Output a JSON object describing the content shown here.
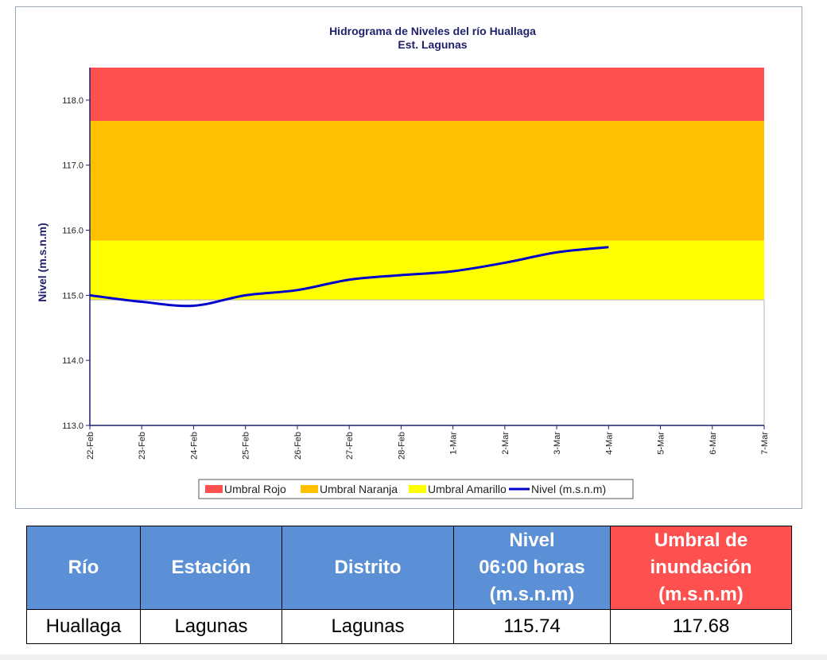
{
  "chart_data": {
    "type": "line",
    "title": "Hidrograma de Niveles del río Huallaga",
    "subtitle": "Est. Lagunas",
    "ylabel": "Nivel (m.s.n.m)",
    "xlabel": "",
    "ylim": [
      113.0,
      118.5
    ],
    "yticks": [
      "113.0",
      "114.0",
      "115.0",
      "116.0",
      "117.0",
      "118.0"
    ],
    "categories": [
      "22-Feb",
      "23-Feb",
      "24-Feb",
      "25-Feb",
      "26-Feb",
      "27-Feb",
      "28-Feb",
      "1-Mar",
      "2-Mar",
      "3-Mar",
      "4-Mar",
      "5-Mar",
      "6-Mar",
      "7-Mar"
    ],
    "bands": [
      {
        "name": "Umbral Rojo",
        "from": 117.68,
        "to": 118.5,
        "color": "#ff5050"
      },
      {
        "name": "Umbral Naranja",
        "from": 115.84,
        "to": 117.68,
        "color": "#ffc000"
      },
      {
        "name": "Umbral Amarillo",
        "from": 114.93,
        "to": 115.84,
        "color": "#ffff00"
      }
    ],
    "series": [
      {
        "name": "Nivel (m.s.n.m)",
        "color": "#0000cc",
        "x": [
          "22-Feb",
          "23-Feb",
          "24-Feb",
          "25-Feb",
          "26-Feb",
          "27-Feb",
          "28-Feb",
          "1-Mar",
          "2-Mar",
          "3-Mar",
          "4-Mar"
        ],
        "values": [
          115.0,
          114.9,
          114.84,
          115.0,
          115.08,
          115.24,
          115.31,
          115.37,
          115.5,
          115.66,
          115.74
        ]
      }
    ],
    "legend": "bottom-center",
    "grid": false
  },
  "table": {
    "headers": [
      {
        "lines": [
          "Río"
        ],
        "color": "#5b8fd6"
      },
      {
        "lines": [
          "Estación"
        ],
        "color": "#5b8fd6"
      },
      {
        "lines": [
          "Distrito"
        ],
        "color": "#5b8fd6"
      },
      {
        "lines": [
          "Nivel",
          "06:00 horas",
          "(m.s.n.m)"
        ],
        "color": "#5b8fd6"
      },
      {
        "lines": [
          "Umbral de",
          "inundación",
          "(m.s.n.m)"
        ],
        "color": "#ff5050"
      }
    ],
    "row": [
      "Huallaga",
      "Lagunas",
      "Lagunas",
      "115.74",
      "117.68"
    ]
  }
}
